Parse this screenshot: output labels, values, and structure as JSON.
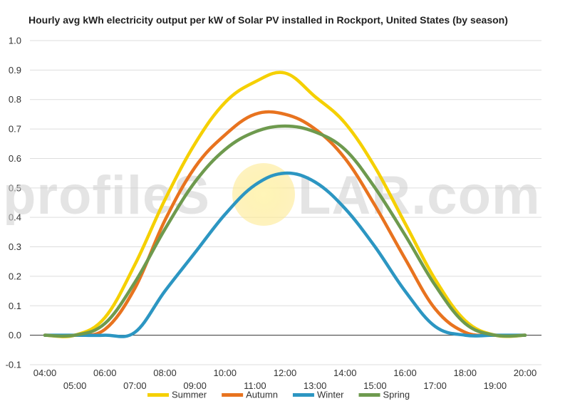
{
  "chart_data": {
    "type": "line",
    "title": "Hourly avg kWh electricity output per kW of Solar PV installed in Rockport, United States (by season)",
    "xlabel": "",
    "ylabel": "",
    "ylim": [
      -0.1,
      1.0
    ],
    "yticks": [
      "-0.1",
      "0.0",
      "0.1",
      "0.2",
      "0.3",
      "0.4",
      "0.5",
      "0.6",
      "0.7",
      "0.8",
      "0.9",
      "1.0"
    ],
    "categories": [
      "04:00",
      "05:00",
      "06:00",
      "07:00",
      "08:00",
      "09:00",
      "10:00",
      "11:00",
      "12:00",
      "13:00",
      "14:00",
      "15:00",
      "16:00",
      "17:00",
      "18:00",
      "19:00",
      "20:00"
    ],
    "grid": true,
    "legend_position": "bottom",
    "series": [
      {
        "name": "Summer",
        "color": "#f5d000",
        "values": [
          0.0,
          0.0,
          0.06,
          0.24,
          0.46,
          0.65,
          0.79,
          0.86,
          0.89,
          0.81,
          0.72,
          0.57,
          0.38,
          0.19,
          0.05,
          0.0,
          0.0
        ]
      },
      {
        "name": "Autumn",
        "color": "#e8731f",
        "values": [
          0.0,
          0.0,
          0.02,
          0.16,
          0.39,
          0.57,
          0.68,
          0.75,
          0.75,
          0.7,
          0.6,
          0.44,
          0.26,
          0.09,
          0.01,
          0.0,
          0.0
        ]
      },
      {
        "name": "Winter",
        "color": "#2c96c2",
        "values": [
          0.0,
          0.0,
          0.0,
          0.01,
          0.15,
          0.28,
          0.41,
          0.51,
          0.55,
          0.52,
          0.43,
          0.3,
          0.15,
          0.03,
          0.0,
          0.0,
          0.0
        ]
      },
      {
        "name": "Spring",
        "color": "#6e9a4e",
        "values": [
          0.0,
          0.0,
          0.04,
          0.18,
          0.36,
          0.52,
          0.63,
          0.69,
          0.71,
          0.69,
          0.63,
          0.5,
          0.34,
          0.17,
          0.04,
          0.0,
          0.0
        ]
      }
    ]
  },
  "watermark": {
    "text_left": "profileS",
    "text_right": "LAR.com"
  }
}
